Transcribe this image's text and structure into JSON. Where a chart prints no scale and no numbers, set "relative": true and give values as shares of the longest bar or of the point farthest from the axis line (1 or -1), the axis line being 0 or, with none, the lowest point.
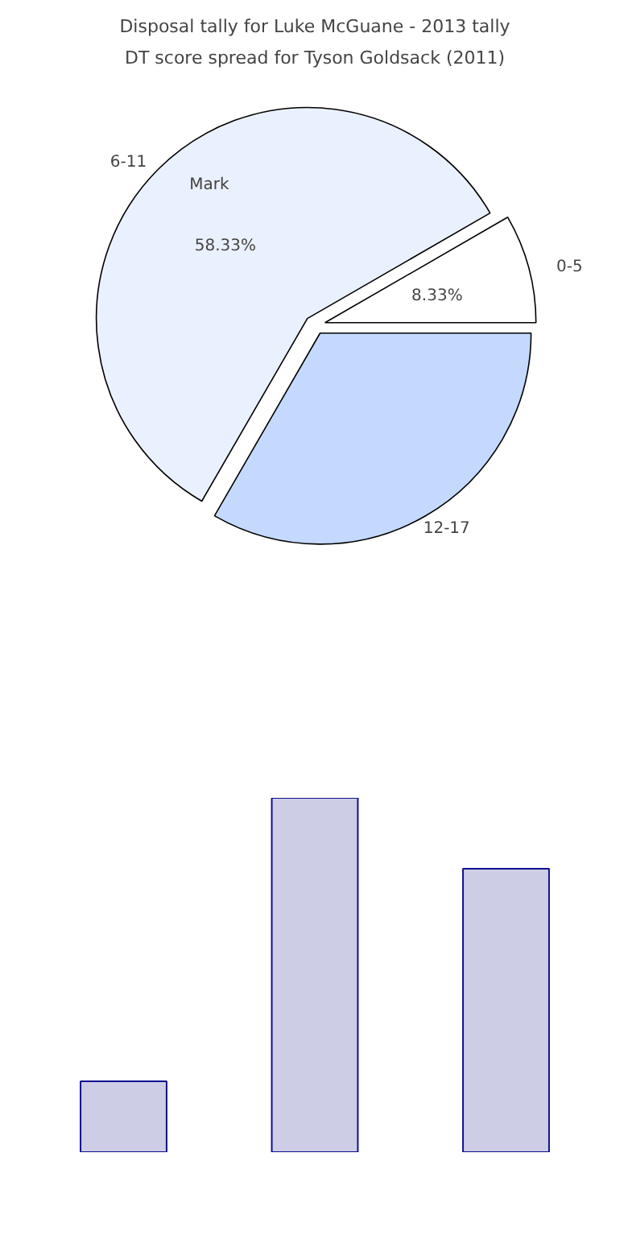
{
  "chart_data": [
    {
      "type": "pie",
      "title": "Disposal tally for Luke McGuane - 2013 tally",
      "subtitle": "DT score spread for Tyson Goldsack (2011)",
      "categories": [
        "0-5",
        "6-11",
        "12-17"
      ],
      "values": [
        8.33,
        58.33,
        33.34
      ],
      "colors": [
        "#ffffff",
        "#eaf1fe",
        "#c5d9ff"
      ],
      "value_labels": [
        "8.33%",
        "58.33%",
        null
      ],
      "annotations": [
        "Mark"
      ]
    },
    {
      "type": "bar",
      "relative": true,
      "categories": [
        null,
        null,
        null
      ],
      "values": [
        0.2,
        1,
        0.8
      ],
      "color": "#cdcde6"
    }
  ]
}
